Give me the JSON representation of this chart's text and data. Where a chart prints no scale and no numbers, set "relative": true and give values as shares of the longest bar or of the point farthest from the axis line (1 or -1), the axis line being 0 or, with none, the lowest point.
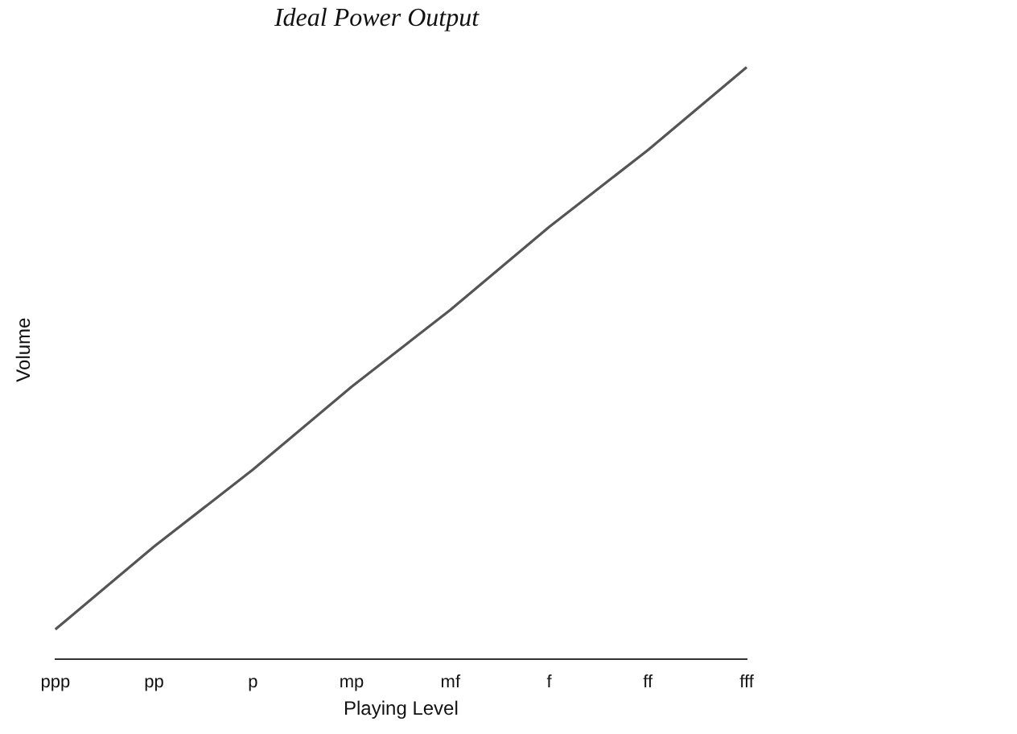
{
  "chart_data": {
    "type": "line",
    "title": "Ideal Power Output",
    "xlabel": "Playing Level",
    "ylabel": "Volume",
    "relative": true,
    "categories": [
      "ppp",
      "pp",
      "p",
      "mp",
      "mf",
      "f",
      "ff",
      "fff"
    ],
    "series": [
      {
        "color": "#555555",
        "values": [
          0.05,
          0.19,
          0.32,
          0.46,
          0.59,
          0.73,
          0.86,
          1
        ]
      }
    ],
    "marker": "none",
    "line_style": "solid",
    "grid": false,
    "legend": false
  }
}
